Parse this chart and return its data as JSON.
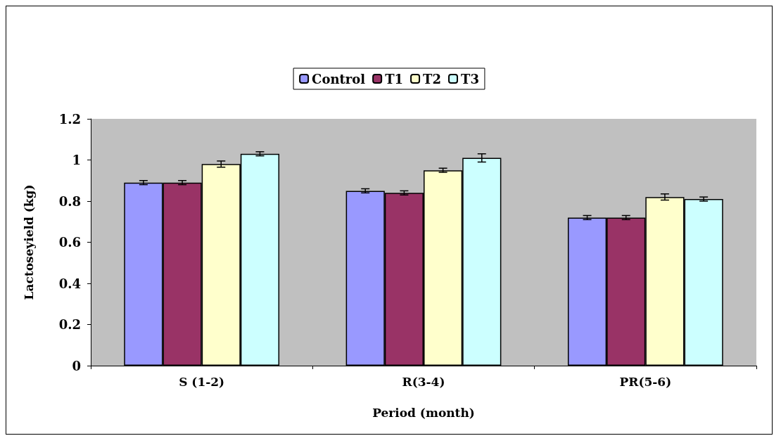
{
  "chart_data": {
    "type": "bar",
    "xlabel": "Period (month)",
    "ylabel": "Lactoseyield (kg)",
    "categories": [
      "S (1-2)",
      "R(3-4)",
      "PR(5-6)"
    ],
    "series": [
      {
        "name": "Control",
        "color": "#9999ff",
        "values": [
          0.89,
          0.85,
          0.72
        ],
        "errors": [
          0.01,
          0.01,
          0.01
        ]
      },
      {
        "name": "T1",
        "color": "#993366",
        "values": [
          0.89,
          0.84,
          0.72
        ],
        "errors": [
          0.01,
          0.01,
          0.01
        ]
      },
      {
        "name": "T2",
        "color": "#ffffcc",
        "values": [
          0.98,
          0.95,
          0.82
        ],
        "errors": [
          0.015,
          0.01,
          0.015
        ]
      },
      {
        "name": "T3",
        "color": "#ccffff",
        "values": [
          1.03,
          1.01,
          0.81
        ],
        "errors": [
          0.01,
          0.02,
          0.01
        ]
      }
    ],
    "ylim": [
      0,
      1.2
    ],
    "yticks": [
      0,
      0.2,
      0.4,
      0.6,
      0.8,
      1,
      1.2
    ],
    "grid": false,
    "legend": "top"
  }
}
